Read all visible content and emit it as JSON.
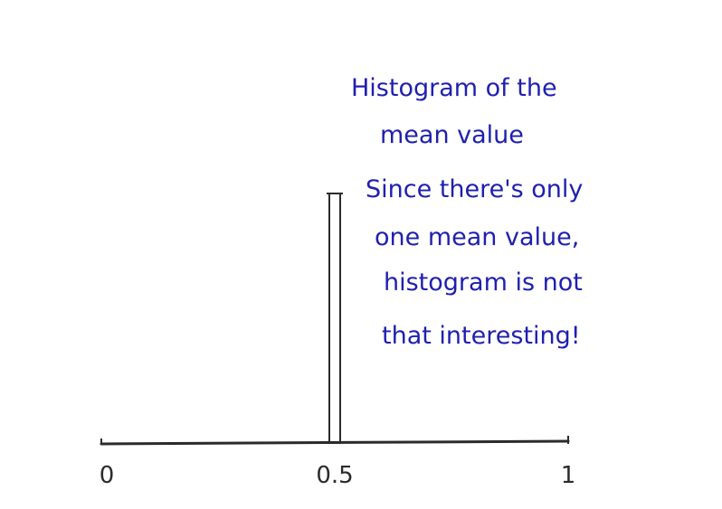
{
  "chart_data": {
    "type": "bar",
    "title": "Histogram of the mean value",
    "x": [
      0.5
    ],
    "values": [
      1
    ],
    "xlim": [
      0,
      1
    ],
    "x_tick_labels": [
      "0",
      "0.5",
      "1"
    ],
    "annotation": [
      "Histogram of the",
      "mean value",
      "Since there's only",
      "one mean value,",
      "histogram is not",
      "that interesting!"
    ],
    "grid": false,
    "colors": {
      "axis": "#2b2b2b",
      "bar": "#2b2b2b",
      "annotation": "#1f1fb0"
    }
  }
}
